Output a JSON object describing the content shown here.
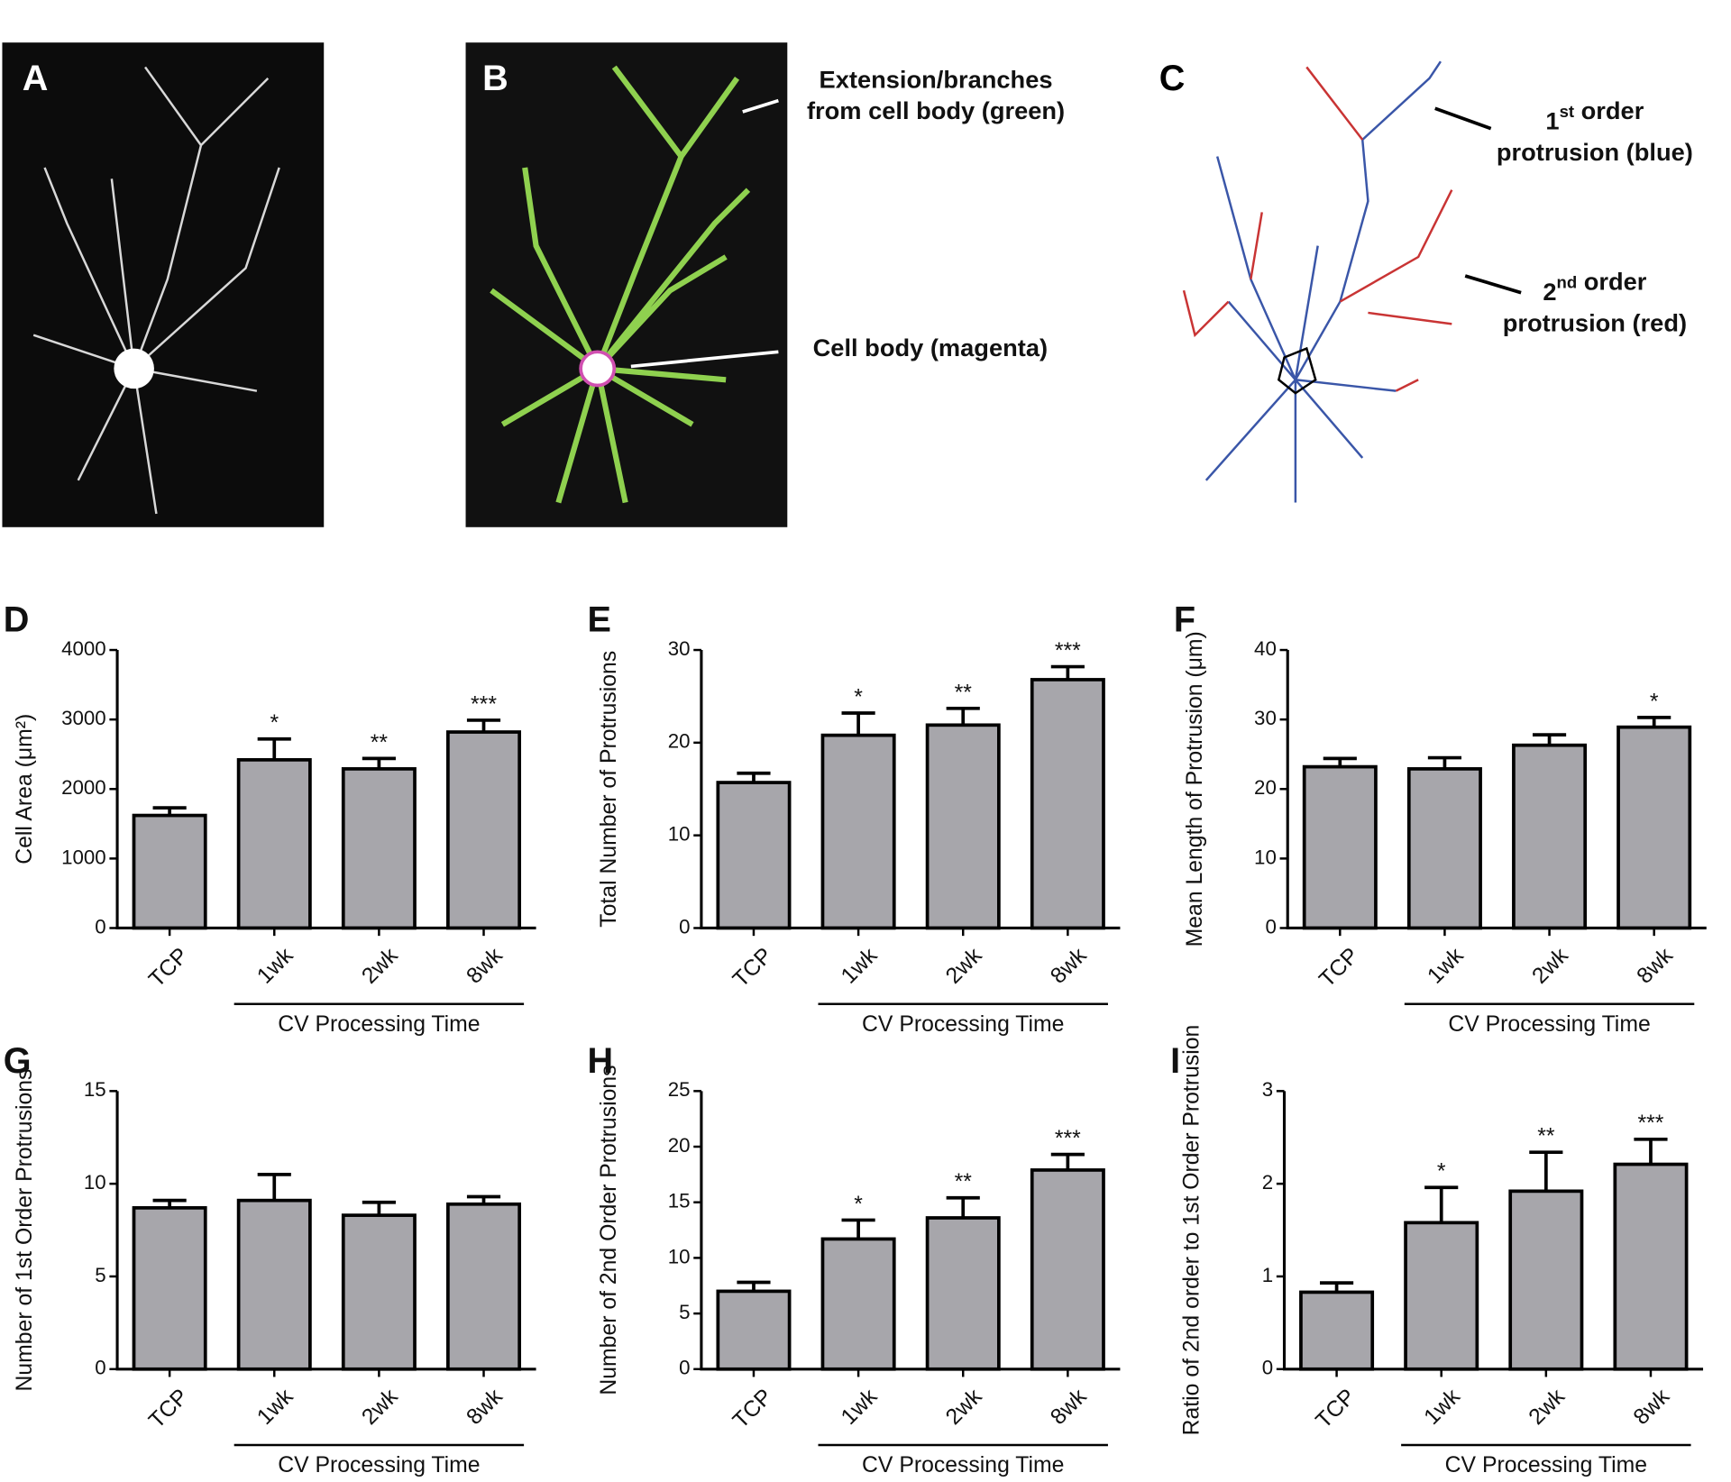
{
  "images": [
    {
      "label": "A"
    },
    {
      "label": "B",
      "notes": [
        {
          "lines": [
            [
              "Extension/branches"
            ],
            [
              "from cell body (green)"
            ]
          ]
        },
        {
          "lines": [
            [
              "Cell body (magenta)"
            ]
          ]
        }
      ]
    },
    {
      "label": "C",
      "notes": [
        {
          "lines": [
            [
              "1",
              {
                "sup": "st"
              },
              " order"
            ],
            [
              "protrusion (blue)"
            ]
          ]
        },
        {
          "lines": [
            [
              "2",
              {
                "sup": "nd"
              },
              " order"
            ],
            [
              "protrusion (red)"
            ]
          ]
        }
      ]
    }
  ],
  "chart_data": [
    {
      "type": "bar",
      "panel": "D",
      "ylabel": "Cell Area (μm²)",
      "group_label": "CV  Processing Time",
      "categories": [
        "TCP",
        "1wk",
        "2wk",
        "8wk"
      ],
      "values": [
        1620,
        2420,
        2290,
        2820
      ],
      "errors": [
        110,
        300,
        150,
        170
      ],
      "annotations": [
        null,
        "*",
        "**",
        "***"
      ],
      "color": "#a7a6ab",
      "ylim": [
        0,
        4000
      ],
      "yticks": [
        0,
        1000,
        2000,
        3000,
        4000
      ]
    },
    {
      "type": "bar",
      "panel": "E",
      "ylabel": "Total Number of Protrusions",
      "group_label": "CV  Processing Time",
      "categories": [
        "TCP",
        "1wk",
        "2wk",
        "8wk"
      ],
      "values": [
        15.7,
        20.8,
        21.9,
        26.8
      ],
      "errors": [
        1.0,
        2.4,
        1.8,
        1.4
      ],
      "annotations": [
        null,
        "*",
        "**",
        "***"
      ],
      "color": "#a7a6ab",
      "ylim": [
        0,
        30
      ],
      "yticks": [
        0,
        10,
        20,
        30
      ]
    },
    {
      "type": "bar",
      "panel": "F",
      "ylabel": "Mean Length of Protrusion (μm)",
      "group_label": "CV  Processing Time",
      "categories": [
        "TCP",
        "1wk",
        "2wk",
        "8wk"
      ],
      "values": [
        23.2,
        22.9,
        26.3,
        28.9
      ],
      "errors": [
        1.2,
        1.6,
        1.5,
        1.4
      ],
      "annotations": [
        null,
        null,
        null,
        "*"
      ],
      "color": "#a7a6ab",
      "ylim": [
        0,
        40
      ],
      "yticks": [
        0,
        10,
        20,
        30,
        40
      ]
    },
    {
      "type": "bar",
      "panel": "G",
      "ylabel": "Number of 1st Order Protrusions",
      "group_label": "CV  Processing Time",
      "categories": [
        "TCP",
        "1wk",
        "2wk",
        "8wk"
      ],
      "values": [
        8.7,
        9.1,
        8.3,
        8.9
      ],
      "errors": [
        0.4,
        1.4,
        0.7,
        0.4
      ],
      "annotations": [
        null,
        null,
        null,
        null
      ],
      "color": "#a7a6ab",
      "ylim": [
        0,
        15
      ],
      "yticks": [
        0,
        5,
        10,
        15
      ]
    },
    {
      "type": "bar",
      "panel": "H",
      "ylabel": "Number of 2nd Order Protrusions",
      "group_label": "CV  Processing Time",
      "categories": [
        "TCP",
        "1wk",
        "2wk",
        "8wk"
      ],
      "values": [
        7.0,
        11.7,
        13.6,
        17.9
      ],
      "errors": [
        0.8,
        1.7,
        1.8,
        1.4
      ],
      "annotations": [
        null,
        "*",
        "**",
        "***"
      ],
      "color": "#a7a6ab",
      "ylim": [
        0,
        25
      ],
      "yticks": [
        0,
        5,
        10,
        15,
        20,
        25
      ]
    },
    {
      "type": "bar",
      "panel": "I",
      "ylabel": "Ratio of 2nd order to 1st Order Protrusion",
      "group_label": "CV  Processing Time",
      "categories": [
        "TCP",
        "1wk",
        "2wk",
        "8wk"
      ],
      "values": [
        0.83,
        1.58,
        1.92,
        2.21
      ],
      "errors": [
        0.1,
        0.38,
        0.42,
        0.27
      ],
      "annotations": [
        null,
        "*",
        "**",
        "***"
      ],
      "color": "#a7a6ab",
      "ylim": [
        0,
        3
      ],
      "yticks": [
        0,
        1,
        2,
        3
      ]
    }
  ]
}
